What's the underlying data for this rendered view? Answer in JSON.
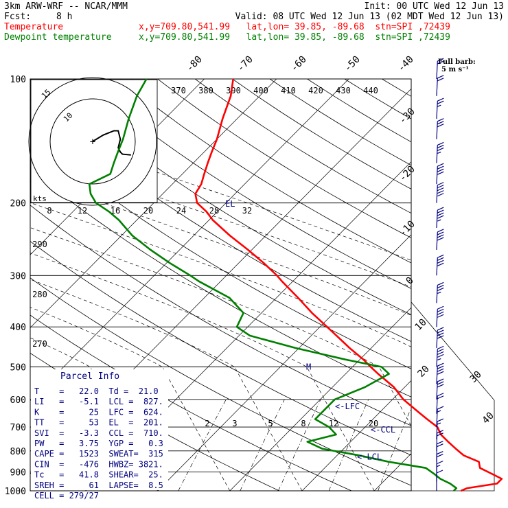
{
  "header": {
    "model": "3km ARW-WRF -- NCAR/MMM",
    "init": "Init: 00 UTC Wed 12 Jun 13",
    "fcst_label": "Fcst:",
    "fcst_value": "8 h",
    "valid": "Valid: 08 UTC Wed 12 Jun 13 (02 MDT Wed 12 Jun 13)",
    "temp_legend": "Temperature",
    "dew_legend": "Dewpoint temperature",
    "location": "x,y=709.80,541.99   lat,lon= 39.85, -89.68  stn=SPI ,72439",
    "colors": {
      "temperature": "#ff0000",
      "dewpoint": "#008000",
      "barbs": "#000080",
      "text": "#000000"
    }
  },
  "chart_data": {
    "type": "line",
    "title": "",
    "xlabel": "",
    "ylabel": "",
    "y_scale": "log-pressure",
    "ylim": [
      1000,
      100
    ],
    "pressure_ticks": [
      "100",
      "200",
      "300",
      "400",
      "500",
      "600",
      "700",
      "800",
      "900",
      "1000"
    ],
    "pressure_values": [
      100,
      200,
      300,
      400,
      500,
      600,
      700,
      800,
      900,
      1000
    ],
    "isotherm_labels_top": [
      "-80",
      "-70",
      "-60",
      "-50",
      "-40"
    ],
    "isotherm_labels_right": [
      "-30",
      "-20",
      "-10",
      "0",
      "10",
      "20",
      "30",
      "40"
    ],
    "theta_labels": [
      "370",
      "380",
      "390",
      "400",
      "410",
      "420",
      "430",
      "440"
    ],
    "hodograph_speed_labels": [
      "8",
      "12",
      "16",
      "20",
      "24",
      "28",
      "32"
    ],
    "mixing_ratio_labels": [
      "2",
      "3",
      "5",
      "8",
      "12",
      "20"
    ],
    "left_side_labels": [
      "290",
      "280",
      "270"
    ],
    "series": [
      {
        "name": "Temperature",
        "color": "#ff0000",
        "pressure": [
          1000,
          985,
          960,
          935,
          910,
          880,
          850,
          820,
          790,
          760,
          730,
          700,
          670,
          640,
          600,
          560,
          520,
          500,
          480,
          450,
          420,
          400,
          370,
          340,
          310,
          300,
          280,
          260,
          240,
          220,
          210,
          200,
          190,
          180,
          170,
          160,
          150,
          140,
          125,
          110,
          100
        ],
        "temp_c": [
          22.0,
          22.5,
          26.0,
          26.0,
          24.0,
          21.5,
          20.5,
          17.5,
          15.5,
          13.5,
          11.5,
          10.0,
          7.5,
          5.0,
          1.5,
          -1.5,
          -5.5,
          -7.5,
          -9.5,
          -13.0,
          -16.5,
          -19.0,
          -23.0,
          -27.0,
          -31.5,
          -33.0,
          -36.5,
          -40.5,
          -45.0,
          -49.5,
          -51.5,
          -54.0,
          -55.5,
          -56.0,
          -57.0,
          -58.0,
          -59.0,
          -60.0,
          -62.0,
          -64.0,
          -66.0
        ]
      },
      {
        "name": "Dewpoint temperature",
        "color": "#008000",
        "pressure": [
          1000,
          985,
          960,
          935,
          910,
          880,
          850,
          820,
          790,
          760,
          730,
          700,
          670,
          640,
          600,
          560,
          520,
          500,
          480,
          450,
          420,
          400,
          370,
          340,
          310,
          300,
          280,
          260,
          240,
          220,
          210,
          200,
          190,
          180,
          170,
          160,
          150,
          140,
          125,
          110,
          100
        ],
        "temp_c": [
          21.0,
          21.0,
          19.5,
          17.5,
          16.0,
          14.0,
          8.0,
          3.0,
          -3.0,
          -6.0,
          -3.0,
          -5.0,
          -8.0,
          -8.0,
          -8.0,
          -5.5,
          -4.0,
          -6.0,
          -12.0,
          -20.5,
          -28.5,
          -31.5,
          -32.5,
          -36.5,
          -43.0,
          -45.0,
          -49.5,
          -54.0,
          -58.5,
          -62.5,
          -65.0,
          -68.0,
          -70.0,
          -71.5,
          -70.0,
          -71.0,
          -72.0,
          -73.0,
          -75.0,
          -77.0,
          -78.0
        ]
      }
    ],
    "annotations": [
      {
        "text": "EL",
        "pressure": 201
      },
      {
        "text": "M",
        "pressure": 500
      },
      {
        "text": "<-LFC",
        "pressure": 624
      },
      {
        "text": "<-CCL",
        "pressure": 710
      },
      {
        "text": "<-LCL",
        "pressure": 827
      }
    ],
    "hodograph_trace": [
      [
        0,
        0
      ],
      [
        2.5,
        1.5
      ],
      [
        5,
        2.5
      ],
      [
        6,
        2.5
      ],
      [
        6.5,
        0.5
      ],
      [
        6,
        -1.5
      ],
      [
        6.5,
        -2.5
      ],
      [
        7,
        -3
      ],
      [
        9,
        -3.2
      ]
    ],
    "wind_barbs": {
      "title": "Full barb:",
      "unit": "5 m s⁻¹",
      "levels": [
        100,
        110,
        125,
        140,
        160,
        180,
        200,
        230,
        260,
        300,
        350,
        400,
        450,
        500,
        550,
        600,
        650,
        700,
        750,
        800,
        850,
        900,
        950,
        1000
      ],
      "speed_ms": [
        10,
        12,
        14,
        17,
        19,
        22,
        25,
        24,
        22,
        20,
        19,
        20,
        21,
        23,
        20,
        15,
        12,
        9,
        8,
        10,
        11,
        10,
        9,
        6
      ],
      "dir_deg": [
        275,
        275,
        275,
        275,
        275,
        275,
        275,
        270,
        270,
        270,
        268,
        265,
        265,
        260,
        255,
        250,
        245,
        240,
        225,
        210,
        200,
        195,
        190,
        180
      ]
    }
  },
  "parcel_info": {
    "title": "Parcel Info",
    "rows": [
      "T    =   22.0  Td =  21.0",
      "LI   =   -5.1  LCL =  827.",
      "K    =     25  LFC =  624.",
      "TT   =     53  EL  =  201.",
      "SVI  =   -3.3  CCL =  710.",
      "PW   =   3.75  YGP =   0.3",
      "CAPE =   1523  SWEAT=  315",
      "CIN  =   -476  HWBZ= 3821.",
      "Tc   =   41.8  SHEAR=  25.",
      "SREH =     61  LAPSE=  8.5",
      "CELL = 279/27"
    ]
  }
}
